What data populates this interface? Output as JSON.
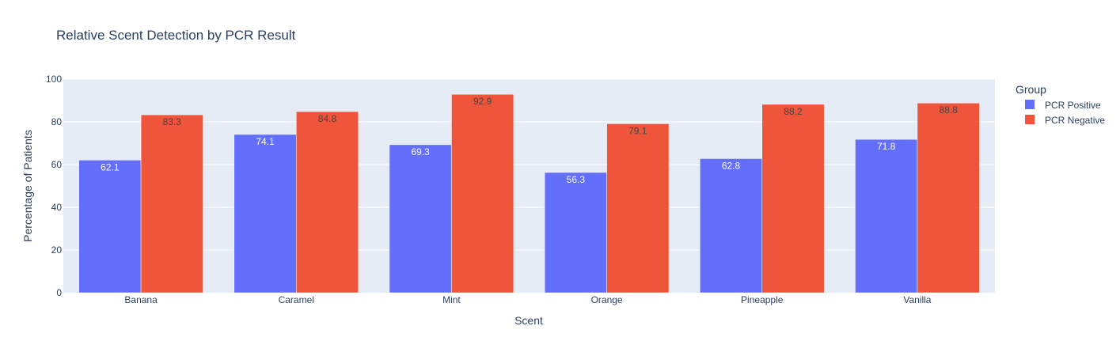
{
  "chart_data": {
    "type": "bar",
    "title": "Relative Scent Detection by PCR Result",
    "xlabel": "Scent",
    "ylabel": "Percentage of Patients",
    "categories": [
      "Banana",
      "Caramel",
      "Mint",
      "Orange",
      "Pineapple",
      "Vanilla"
    ],
    "series": [
      {
        "name": "PCR Positive",
        "color": "#636efa",
        "label_color": "#ffffff",
        "values": [
          62.1,
          74.1,
          69.3,
          56.3,
          62.8,
          71.8
        ]
      },
      {
        "name": "PCR Negative",
        "color": "#ef553b",
        "label_color": "#444444",
        "values": [
          83.3,
          84.8,
          92.9,
          79.1,
          88.2,
          88.8
        ]
      }
    ],
    "ylim": [
      0,
      100
    ],
    "yticks": [
      0,
      20,
      40,
      60,
      80,
      100
    ],
    "grid": true,
    "legend": {
      "title": "Group",
      "position": "top-right"
    },
    "colors": {
      "plot_bg": "#e5ecf6",
      "grid": "#ffffff",
      "text": "#2a3f5f"
    }
  }
}
